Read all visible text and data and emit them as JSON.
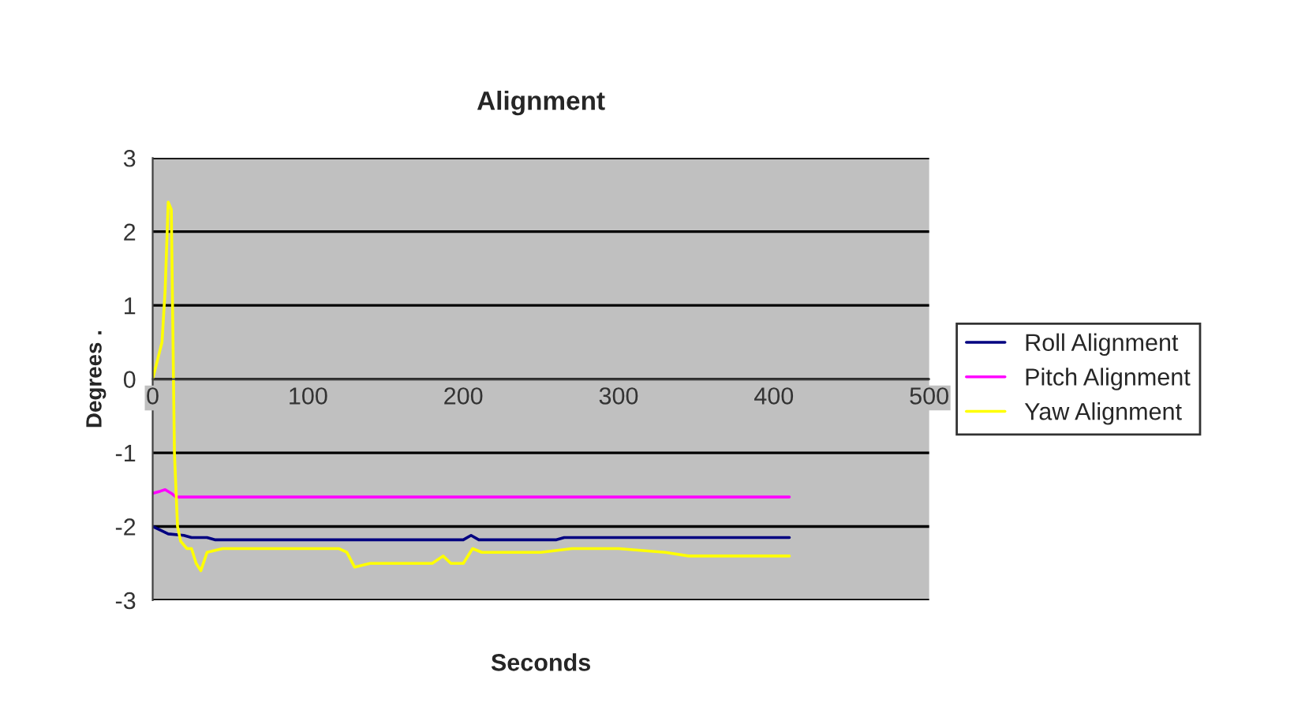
{
  "chart_data": {
    "type": "line",
    "title": "Alignment",
    "xlabel": "Seconds",
    "ylabel": "Degrees .",
    "xlim": [
      0,
      500
    ],
    "xticks": [
      0,
      100,
      200,
      300,
      400,
      500
    ],
    "ylim": [
      -3,
      3
    ],
    "yticks": [
      -3,
      -2,
      -1,
      0,
      1,
      2,
      3
    ],
    "grid": "y",
    "legend": "right",
    "line_style": "solid",
    "marker": "none",
    "series": [
      {
        "name": "Roll Alignment",
        "color": "#000080",
        "x": [
          0,
          5,
          10,
          20,
          25,
          35,
          40,
          50,
          100,
          150,
          200,
          205,
          210,
          260,
          265,
          300,
          350,
          410
        ],
        "values": [
          -2.0,
          -2.05,
          -2.1,
          -2.12,
          -2.15,
          -2.15,
          -2.18,
          -2.18,
          -2.18,
          -2.18,
          -2.18,
          -2.12,
          -2.18,
          -2.18,
          -2.15,
          -2.15,
          -2.15,
          -2.15
        ]
      },
      {
        "name": "Pitch Alignment",
        "color": "#ff00ff",
        "x": [
          0,
          5,
          8,
          12,
          15,
          50,
          100,
          200,
          300,
          410
        ],
        "values": [
          -1.55,
          -1.52,
          -1.5,
          -1.55,
          -1.6,
          -1.6,
          -1.6,
          -1.6,
          -1.6,
          -1.6
        ]
      },
      {
        "name": "Yaw Alignment",
        "color": "#ffff00",
        "x": [
          0,
          6,
          8,
          10,
          12,
          14,
          16,
          18,
          22,
          25,
          28,
          31,
          35,
          45,
          60,
          90,
          120,
          125,
          130,
          140,
          160,
          180,
          187,
          192,
          200,
          206,
          212,
          230,
          250,
          270,
          300,
          330,
          345,
          360,
          380,
          410
        ],
        "values": [
          0,
          0.5,
          1.2,
          2.4,
          2.3,
          -1.0,
          -2.0,
          -2.2,
          -2.3,
          -2.3,
          -2.5,
          -2.6,
          -2.35,
          -2.3,
          -2.3,
          -2.3,
          -2.3,
          -2.35,
          -2.55,
          -2.5,
          -2.5,
          -2.5,
          -2.4,
          -2.5,
          -2.5,
          -2.3,
          -2.35,
          -2.35,
          -2.35,
          -2.3,
          -2.3,
          -2.35,
          -2.4,
          -2.4,
          -2.4,
          -2.4
        ]
      }
    ]
  }
}
